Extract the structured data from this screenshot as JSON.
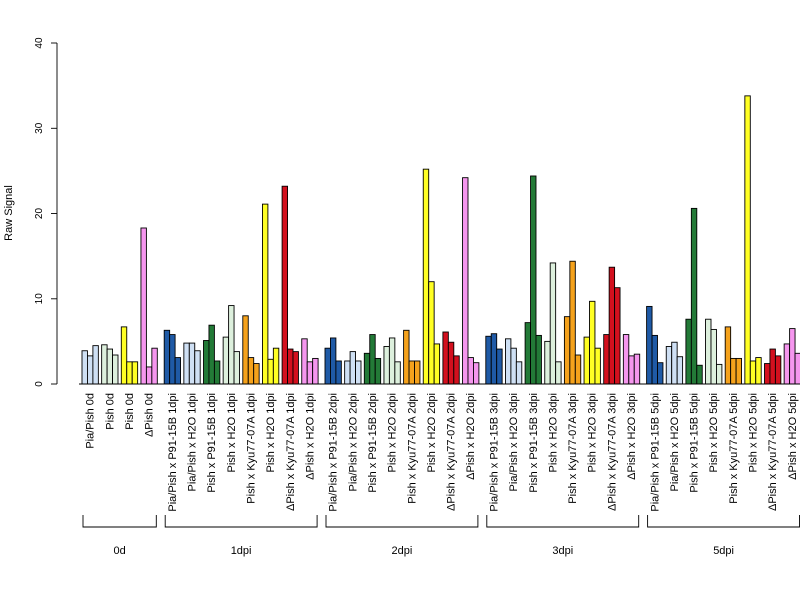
{
  "chart_data": {
    "type": "bar",
    "ylabel": "Raw Signal",
    "ylim": [
      0,
      40
    ],
    "yticks": [
      0,
      10,
      20,
      30,
      40
    ],
    "grid": false,
    "legend": "none",
    "colors": {
      "Pia/Pish": "#cfe0f4",
      "Pish": "#ffff24",
      "ΔPish": "#f596ee",
      "P91-15B": "#1f5aa6",
      "P91-15B H2O": "#cfe0f4",
      "H2O": "#ddf0dd",
      "P91-15B pish": "#237a37",
      "Kyu77-07A": "#f5a21c",
      "Kyu77-07A dpish": "#d3101e"
    },
    "groups": [
      {
        "label": "0d",
        "categories": [
          {
            "label": "Pia/Pish 0d",
            "color": "#cfe0f4",
            "values": [
              3.9,
              3.3,
              4.5
            ]
          },
          {
            "label": "Pish 0d",
            "color": "#ddf0dd",
            "values": [
              4.6,
              4.1,
              3.4
            ]
          },
          {
            "label": "Pish 0d",
            "color": "#ffff24",
            "values": [
              6.7,
              2.6,
              2.6
            ]
          },
          {
            "label": "ΔPish 0d",
            "color": "#f596ee",
            "values": [
              18.3,
              2.0,
              4.2
            ]
          }
        ]
      },
      {
        "label": "1dpi",
        "categories": [
          {
            "label": "Pia/Pish x P91-15B 1dpi",
            "color": "#1f5aa6",
            "values": [
              6.3,
              5.8,
              3.1
            ]
          },
          {
            "label": "Pia/Pish x H2O 1dpi",
            "color": "#cfe0f4",
            "values": [
              4.8,
              4.8,
              3.9
            ]
          },
          {
            "label": "Pish x P91-15B 1dpi",
            "color": "#237a37",
            "values": [
              5.1,
              6.9,
              2.7
            ]
          },
          {
            "label": "Pish x H2O 1dpi",
            "color": "#ddf0dd",
            "values": [
              5.5,
              9.2,
              3.8
            ]
          },
          {
            "label": "Pish x Kyu77-07A 1dpi",
            "color": "#f5a21c",
            "values": [
              8.0,
              3.1,
              2.4
            ]
          },
          {
            "label": "Pish x H2O 1dpi",
            "color": "#ffff24",
            "values": [
              21.1,
              2.9,
              4.2
            ]
          },
          {
            "label": "ΔPish x Kyu77-07A 1dpi",
            "color": "#d3101e",
            "values": [
              23.2,
              4.1,
              3.8
            ]
          },
          {
            "label": "ΔPish x H2O 1dpi",
            "color": "#f596ee",
            "values": [
              5.3,
              2.6,
              3.0
            ]
          }
        ]
      },
      {
        "label": "2dpi",
        "categories": [
          {
            "label": "Pia/Pish x P91-15B 2dpi",
            "color": "#1f5aa6",
            "values": [
              4.2,
              5.4,
              2.7
            ]
          },
          {
            "label": "Pia/Pish x H2O 2dpi",
            "color": "#cfe0f4",
            "values": [
              2.7,
              3.8,
              2.7
            ]
          },
          {
            "label": "Pish x P91-15B 2dpi",
            "color": "#237a37",
            "values": [
              3.6,
              5.8,
              3.0
            ]
          },
          {
            "label": "Pish x H2O 2dpi",
            "color": "#ddf0dd",
            "values": [
              4.4,
              5.4,
              2.6
            ]
          },
          {
            "label": "Pish x Kyu77-07A 2dpi",
            "color": "#f5a21c",
            "values": [
              6.3,
              2.7,
              2.7
            ]
          },
          {
            "label": "Pish x H2O 2dpi",
            "color": "#ffff24",
            "values": [
              25.2,
              12.0,
              4.7
            ]
          },
          {
            "label": "ΔPish x Kyu77-07A 2dpi",
            "color": "#d3101e",
            "values": [
              6.1,
              4.9,
              3.3
            ]
          },
          {
            "label": "ΔPish x H2O 2dpi",
            "color": "#f596ee",
            "values": [
              24.2,
              3.1,
              2.5
            ]
          }
        ]
      },
      {
        "label": "3dpi",
        "categories": [
          {
            "label": "Pia/Pish x P91-15B 3dpi",
            "color": "#1f5aa6",
            "values": [
              5.6,
              5.9,
              4.1
            ]
          },
          {
            "label": "Pia/Pish x H2O 3dpi",
            "color": "#cfe0f4",
            "values": [
              5.3,
              4.2,
              2.6
            ]
          },
          {
            "label": "Pish x P91-15B 3dpi",
            "color": "#237a37",
            "values": [
              7.2,
              24.4,
              5.7
            ]
          },
          {
            "label": "Pish x H2O 3dpi",
            "color": "#ddf0dd",
            "values": [
              5.0,
              14.2,
              2.6
            ]
          },
          {
            "label": "Pish x Kyu77-07A 3dpi",
            "color": "#f5a21c",
            "values": [
              7.9,
              14.4,
              3.4
            ]
          },
          {
            "label": "Pish x H2O 3dpi",
            "color": "#ffff24",
            "values": [
              5.5,
              9.7,
              4.2
            ]
          },
          {
            "label": "ΔPish x Kyu77-07A 3dpi",
            "color": "#d3101e",
            "values": [
              5.8,
              13.7,
              11.3
            ]
          },
          {
            "label": "ΔPish x H2O 3dpi",
            "color": "#f596ee",
            "values": [
              5.8,
              3.3,
              3.5
            ]
          }
        ]
      },
      {
        "label": "5dpi",
        "categories": [
          {
            "label": "Pia/Pish x P91-15B 5dpi",
            "color": "#1f5aa6",
            "values": [
              9.1,
              5.7,
              2.5
            ]
          },
          {
            "label": "Pia/Pish x H2O 5dpi",
            "color": "#cfe0f4",
            "values": [
              4.4,
              4.9,
              3.2
            ]
          },
          {
            "label": "Pish x P91-15B 5dpi",
            "color": "#237a37",
            "values": [
              7.6,
              20.6,
              2.2
            ]
          },
          {
            "label": "Pish x H2O 5dpi",
            "color": "#ddf0dd",
            "values": [
              7.6,
              6.4,
              2.3
            ]
          },
          {
            "label": "Pish x Kyu77-07A 5dpi",
            "color": "#f5a21c",
            "values": [
              6.7,
              3.0,
              3.0
            ]
          },
          {
            "label": "Pish x H2O 5dpi",
            "color": "#ffff24",
            "values": [
              33.8,
              2.7,
              3.1
            ]
          },
          {
            "label": "ΔPish x Kyu77-07A 5dpi",
            "color": "#d3101e",
            "values": [
              2.4,
              4.1,
              3.3
            ]
          },
          {
            "label": "ΔPish x H2O 5dpi",
            "color": "#f596ee",
            "values": [
              4.7,
              6.5,
              3.6
            ]
          }
        ]
      }
    ]
  }
}
